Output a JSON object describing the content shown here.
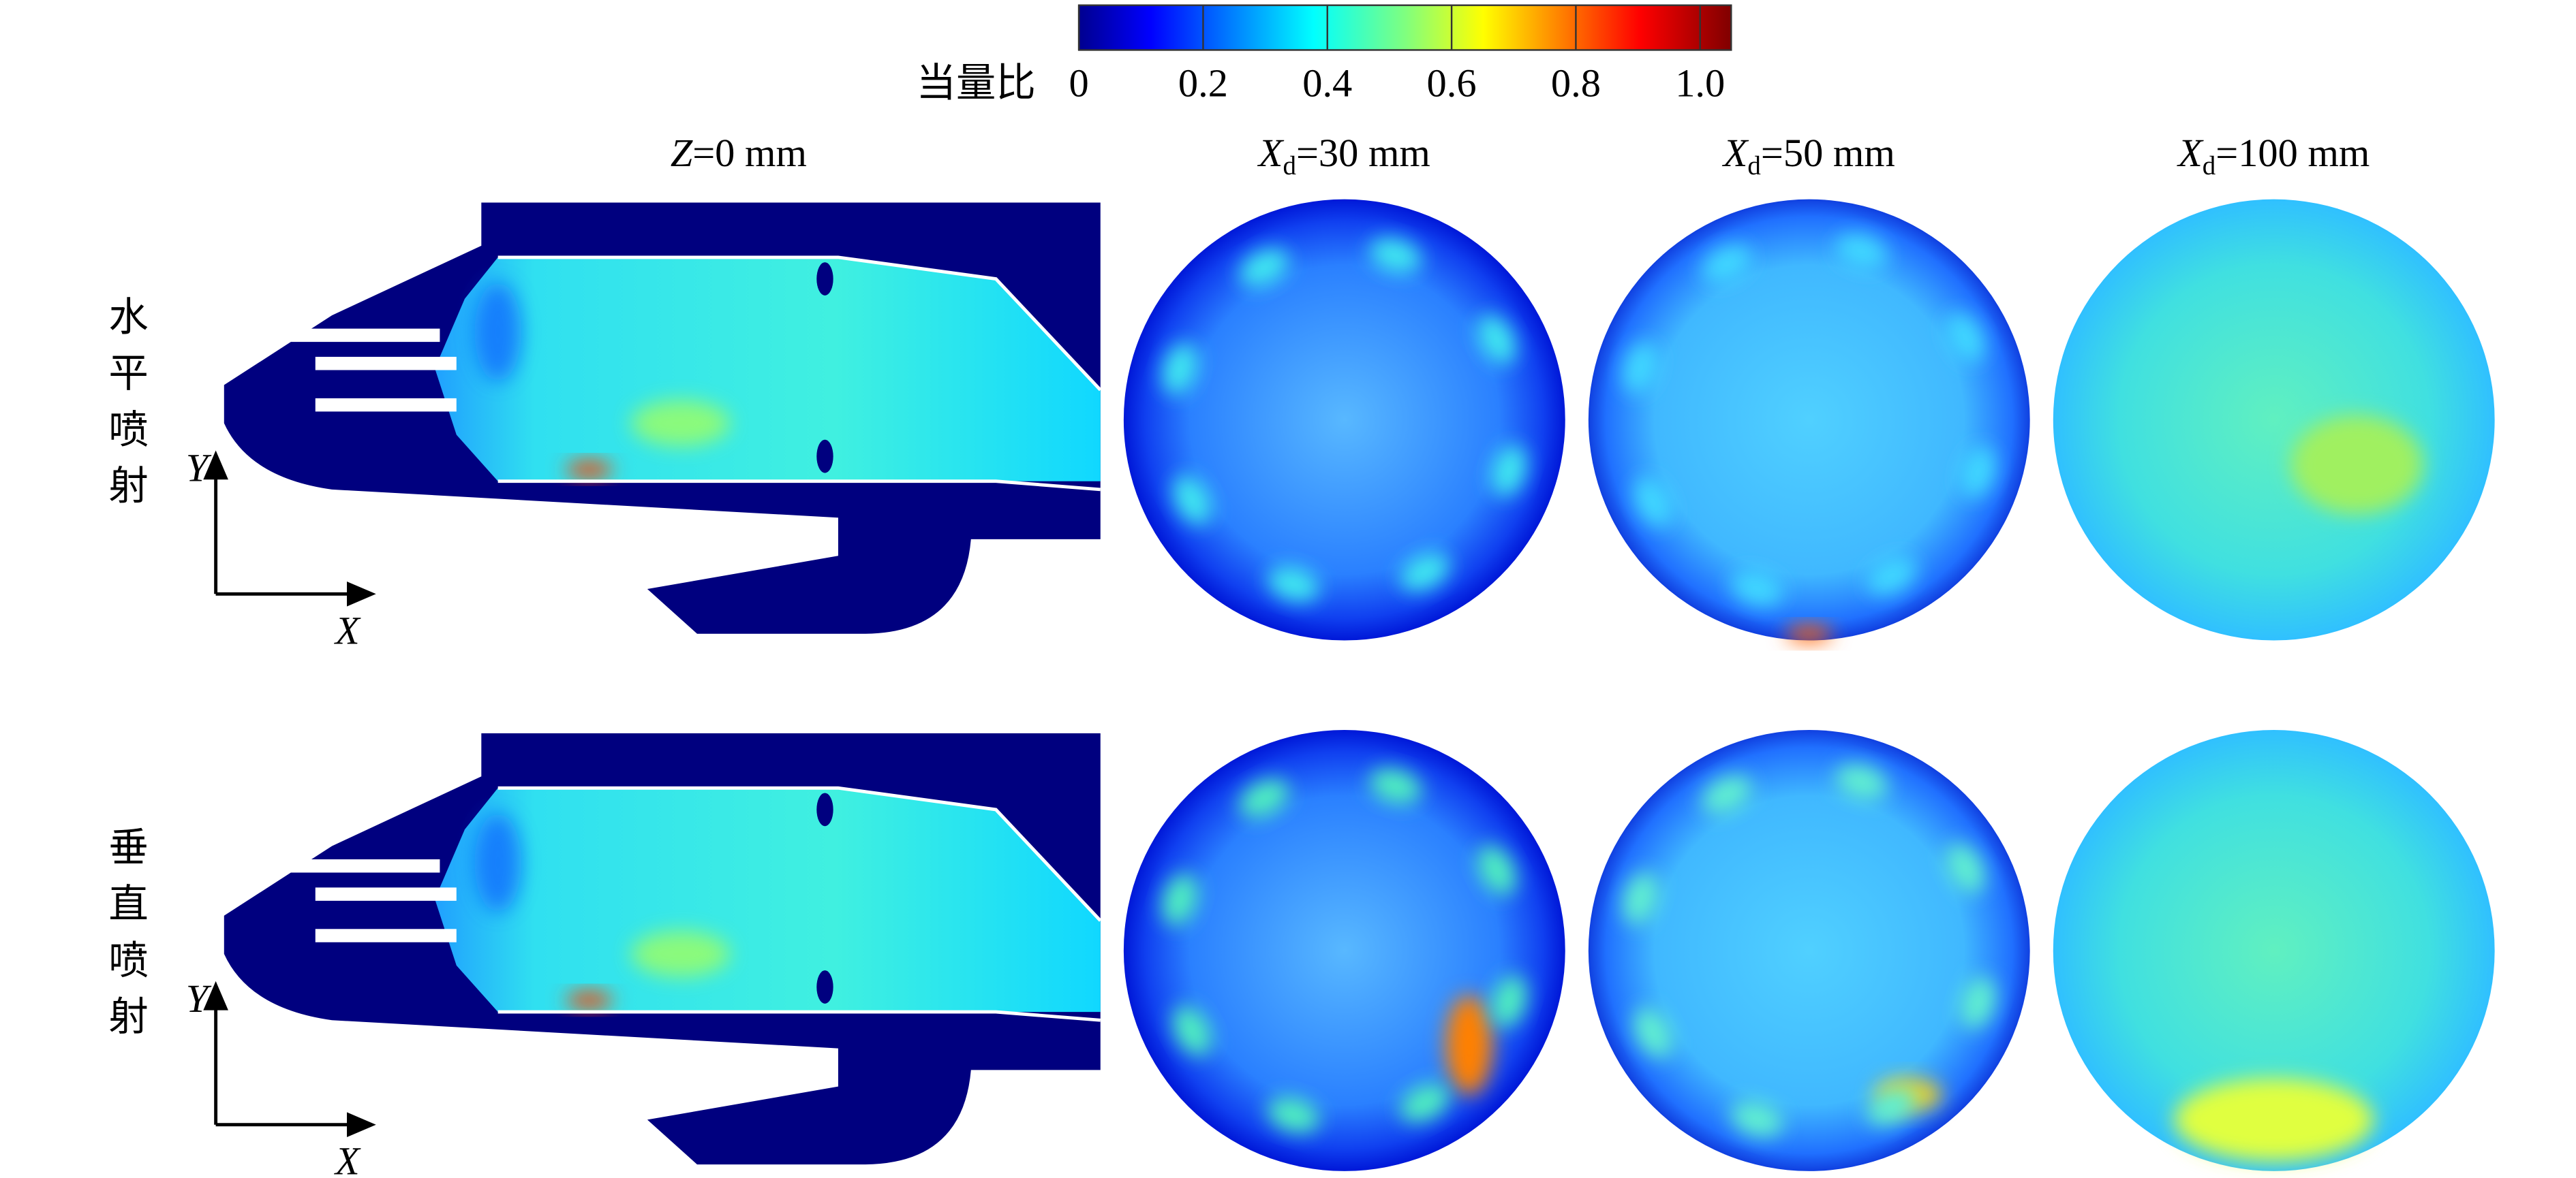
{
  "colorbar": {
    "label": "当量比",
    "range": [
      0,
      1.05
    ],
    "ticks": [
      0,
      0.2,
      0.4,
      0.6,
      0.8,
      {
        "value": 1,
        "label": "1.0"
      }
    ]
  },
  "columns": [
    {
      "symbol": "Z",
      "text": "=0 mm"
    },
    {
      "symbol": "X",
      "subscript": "d",
      "text": "=30 mm"
    },
    {
      "symbol": "X",
      "subscript": "d",
      "text": "=50 mm"
    },
    {
      "symbol": "X",
      "subscript": "d",
      "text": "=100 mm"
    }
  ],
  "rows": [
    {
      "label": "水平喷射"
    },
    {
      "label": "垂直喷射"
    }
  ],
  "axes": {
    "y": "Y",
    "x": "X"
  }
}
